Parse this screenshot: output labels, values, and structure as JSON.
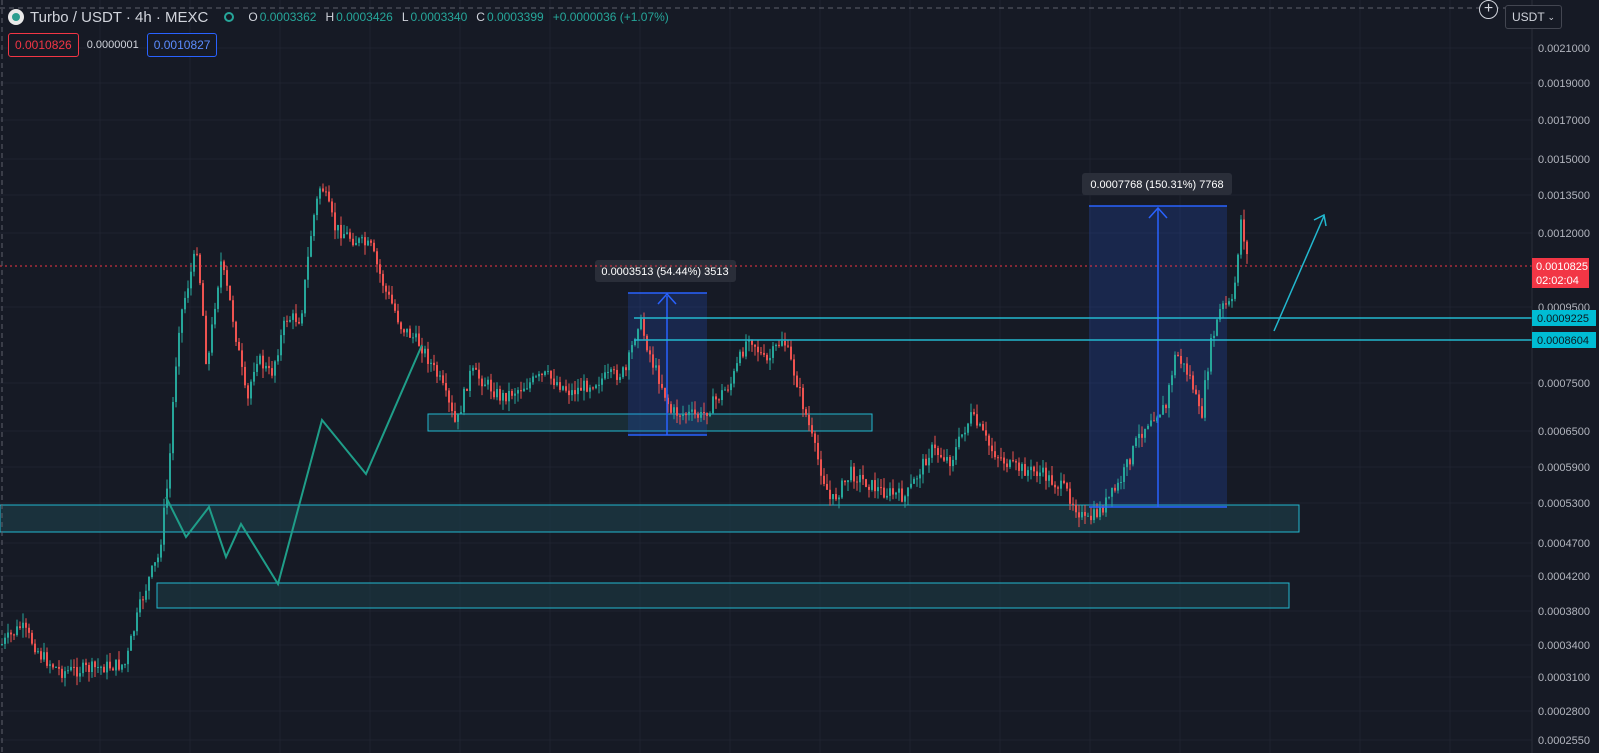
{
  "header": {
    "symbol": "Turbo / USDT · 4h · MEXC",
    "ohlc": [
      {
        "k": "O",
        "v": "0.0003362"
      },
      {
        "k": "H",
        "v": "0.0003426"
      },
      {
        "k": "L",
        "v": "0.0003340"
      },
      {
        "k": "C",
        "v": "0.0003399"
      }
    ],
    "change": "+0.0000036 (+1.07%)"
  },
  "order_bar": {
    "sell": "0.0010826",
    "spread": "0.0000001",
    "buy": "0.0010827"
  },
  "toolbar": {
    "currency": "USDT",
    "add_symbol": "+"
  },
  "price_axis": {
    "ticks": [
      "0.0021000",
      "0.0019000",
      "0.0017000",
      "0.0015000",
      "0.0013500",
      "0.0012000",
      "0.0009500",
      "0.0007500",
      "0.0006500",
      "0.0005900",
      "0.0005300",
      "0.0004700",
      "0.0004200",
      "0.0003800",
      "0.0003400",
      "0.0003100",
      "0.0002800",
      "0.0002550"
    ],
    "current_price": "0.0010825",
    "countdown": "02:02:04",
    "level_1": "0.0009225",
    "level_2": "0.0008604"
  },
  "measurements": [
    {
      "label": "0.0003513 (54.44%) 3513"
    },
    {
      "label": "0.0007768 (150.31%) 7768"
    }
  ],
  "colors": {
    "background": "#161a25",
    "up": "#26a69a",
    "down": "#ef5350",
    "zone_border": "#22b8cf",
    "measure_blue": "#2962ff",
    "current_price": "#f23645"
  },
  "chart_data": {
    "type": "candlestick",
    "timeframe": "4h",
    "ohlc_last": {
      "open": 0.0003362,
      "high": 0.0003426,
      "low": 0.000334,
      "close": 0.0003399
    },
    "price_ticks": [
      0.0021,
      0.0019,
      0.0017,
      0.0015,
      0.00135,
      0.0012,
      0.00095,
      0.00075,
      0.00065,
      0.00059,
      0.00053,
      0.00047,
      0.00042,
      0.00038,
      0.00034,
      0.00031,
      0.00028,
      0.000255
    ],
    "horizontal_levels": [
      0.0009225,
      0.0008604
    ],
    "current_price": 0.0010825,
    "measures": [
      {
        "from": 0.000645,
        "to": 0.000996,
        "delta": 0.0003513,
        "percent": 54.44
      },
      {
        "from": 0.000517,
        "to": 0.001294,
        "delta": 0.0007768,
        "percent": 150.31
      }
    ]
  }
}
